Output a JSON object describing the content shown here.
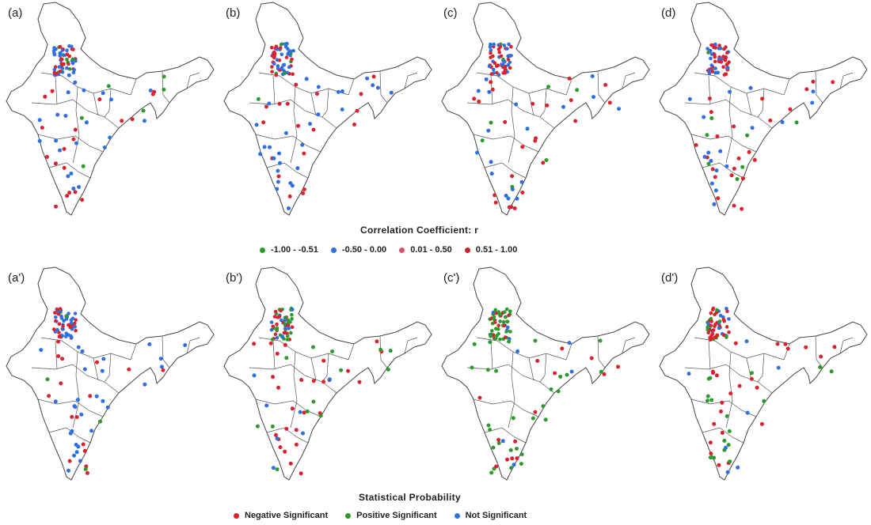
{
  "legends": {
    "correlation": {
      "title": "Correlation Coefficient: r",
      "items": [
        {
          "label": "-1.00 - -0.51",
          "color": "#2e9a2e"
        },
        {
          "label": "-0.50 - 0.00",
          "color": "#2f6fe0"
        },
        {
          "label": "0.01 - 0.50",
          "color": "#e0506a"
        },
        {
          "label": "0.51 - 1.00",
          "color": "#cc2030"
        }
      ]
    },
    "probability": {
      "title": "Statistical Probability",
      "items": [
        {
          "label": "Negative Significant",
          "color": "#d9232e"
        },
        {
          "label": "Positive Significant",
          "color": "#2e9a2e"
        },
        {
          "label": "Not Significant",
          "color": "#2f6fe0"
        }
      ]
    }
  },
  "panels": [
    {
      "label": "(a)",
      "mix": {
        "blue": 0.45,
        "red": 0.45,
        "green": 0.1
      }
    },
    {
      "label": "(b)",
      "mix": {
        "blue": 0.55,
        "red": 0.38,
        "green": 0.07
      }
    },
    {
      "label": "(c)",
      "mix": {
        "blue": 0.45,
        "red": 0.48,
        "green": 0.07
      }
    },
    {
      "label": "(d)",
      "mix": {
        "blue": 0.35,
        "red": 0.55,
        "green": 0.1
      }
    },
    {
      "label": "(a')",
      "mix": {
        "blue": 0.55,
        "red": 0.4,
        "green": 0.05
      }
    },
    {
      "label": "(b')",
      "mix": {
        "blue": 0.15,
        "red": 0.45,
        "green": 0.4
      }
    },
    {
      "label": "(c')",
      "mix": {
        "blue": 0.1,
        "red": 0.3,
        "green": 0.6
      }
    },
    {
      "label": "(d')",
      "mix": {
        "blue": 0.2,
        "red": 0.45,
        "green": 0.35
      }
    }
  ]
}
